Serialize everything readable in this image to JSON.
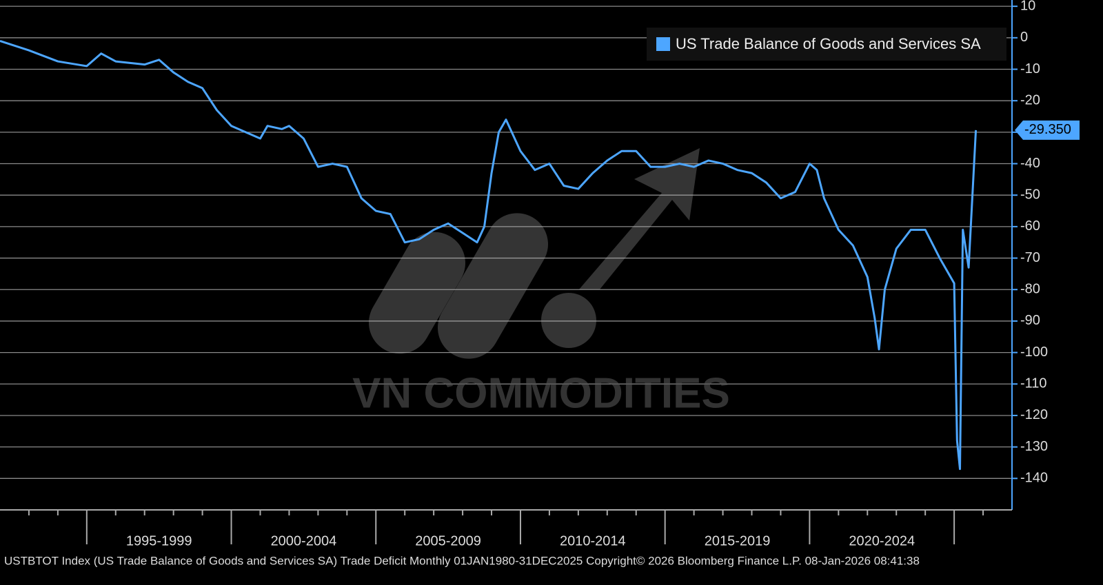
{
  "chart_data": {
    "type": "line",
    "series": [
      {
        "name": "US Trade Balance of Goods and Services SA",
        "color": "#4da6ff",
        "values": [
          -1,
          -4,
          -7.5,
          -9,
          -5,
          -7.5,
          -8.5,
          -7,
          -11,
          -14,
          -16,
          -23,
          -28,
          -30,
          -32,
          -28,
          -29,
          -28,
          -32,
          -41,
          -40,
          -41,
          -51,
          -55,
          -56,
          -65,
          -64,
          -61,
          -59,
          -62,
          -65,
          -60,
          -43,
          -30,
          -26,
          -36,
          -42,
          -40,
          -47,
          -48,
          -43,
          -39,
          -36,
          -36,
          -41,
          -41,
          -40,
          -41,
          -39,
          -40,
          -42,
          -43,
          -46,
          -51,
          -49,
          -40,
          -42,
          -51,
          -61,
          -66,
          -76,
          -89,
          -99,
          -80,
          -67,
          -61,
          -61,
          -70,
          -78,
          -128,
          -137,
          -61,
          -73,
          -29.35
        ]
      }
    ],
    "x": [
      1992,
      1993,
      1994,
      1995,
      1995.5,
      1996,
      1997,
      1997.5,
      1998,
      1998.5,
      1999,
      1999.5,
      2000,
      2000.5,
      2001,
      2001.25,
      2001.75,
      2002,
      2002.5,
      2003,
      2003.5,
      2004,
      2004.5,
      2005,
      2005.5,
      2006,
      2006.5,
      2007,
      2007.5,
      2008,
      2008.5,
      2008.75,
      2009,
      2009.25,
      2009.5,
      2010,
      2010.5,
      2011,
      2011.5,
      2012,
      2012.5,
      2013,
      2013.5,
      2014,
      2014.5,
      2015,
      2015.5,
      2016,
      2016.5,
      2017,
      2017.5,
      2018,
      2018.5,
      2019,
      2019.5,
      2020,
      2020.25,
      2020.5,
      2021,
      2021.5,
      2022,
      2022.25,
      2022.4,
      2022.6,
      2023,
      2023.5,
      2024,
      2024.5,
      2025,
      2025.1,
      2025.2,
      2025.3,
      2025.5,
      2025.75
    ],
    "last_value_label": "-29.350",
    "xlim": [
      1992,
      2027
    ],
    "xticks": [
      1993,
      1994,
      1995,
      1996,
      1997,
      1998,
      1999,
      2000,
      2001,
      2002,
      2003,
      2004,
      2005,
      2006,
      2007,
      2008,
      2009,
      2010,
      2011,
      2012,
      2013,
      2014,
      2015,
      2016,
      2017,
      2018,
      2019,
      2020,
      2021,
      2022,
      2023,
      2024,
      2025,
      2026
    ],
    "periods": [
      "1995-1999",
      "2000-2004",
      "2005-2009",
      "2010-2014",
      "2015-2019",
      "2020-2024"
    ],
    "ylim": [
      -150,
      12
    ],
    "yticks": [
      10,
      0,
      -10,
      -20,
      -30,
      -40,
      -50,
      -60,
      -70,
      -80,
      -90,
      -100,
      -110,
      -120,
      -130,
      -140
    ],
    "grid": true,
    "legend": "top-right",
    "footer": "USTBTOT Index (US Trade Balance of Goods and Services SA) Trade Deficit Monthly 01JAN1980-31DEC2025 Copyright© 2026 Bloomberg Finance L.P. 08-Jan-2026 08:41:38",
    "watermark": "VN COMMODITIES"
  }
}
